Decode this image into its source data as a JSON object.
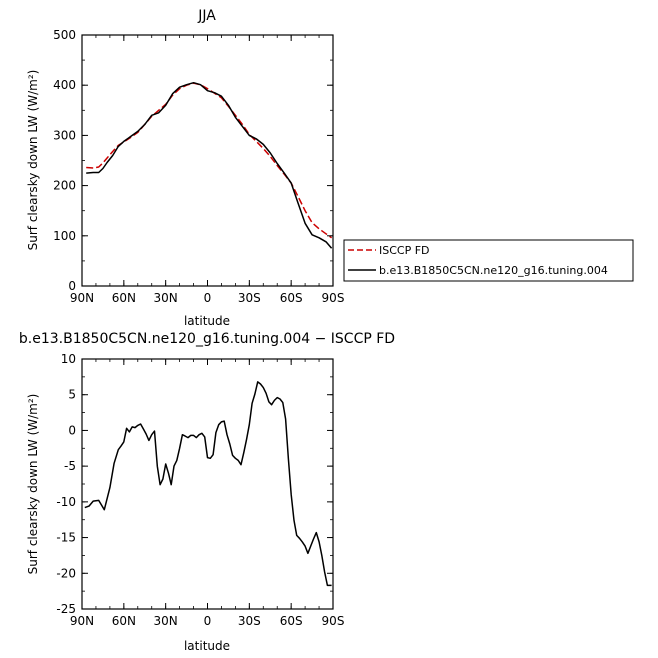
{
  "chart_data": [
    {
      "type": "line",
      "title": "JJA",
      "xlabel": "latitude",
      "ylabel": "Surf clearsky down LW (W/m²)",
      "ylim": [
        0,
        500
      ],
      "yticks": [
        0,
        100,
        200,
        300,
        400,
        500
      ],
      "xlim": [
        90,
        -90
      ],
      "xticks": [
        90,
        60,
        30,
        0,
        -30,
        -60,
        -90
      ],
      "xtick_labels": [
        "90N",
        "60N",
        "30N",
        "0",
        "30S",
        "60S",
        "90S"
      ],
      "grid": false,
      "legend_position": "bottom-right, outside",
      "series": [
        {
          "name": "ISCCP FD",
          "color": "#cc0000",
          "dash": "dashed",
          "x": [
            87,
            82,
            78,
            75,
            72,
            68,
            64,
            60,
            55,
            50,
            45,
            40,
            35,
            30,
            25,
            20,
            15,
            10,
            5,
            0,
            -5,
            -10,
            -15,
            -20,
            -25,
            -30,
            -35,
            -40,
            -45,
            -50,
            -55,
            -60,
            -65,
            -70,
            -75,
            -80,
            -85,
            -89
          ],
          "y": [
            236,
            235,
            237,
            245,
            255,
            268,
            280,
            287,
            296,
            306,
            322,
            338,
            350,
            362,
            380,
            393,
            400,
            404,
            401,
            393,
            384,
            375,
            358,
            340,
            322,
            302,
            288,
            274,
            258,
            240,
            223,
            205,
            178,
            150,
            126,
            114,
            104,
            96
          ]
        },
        {
          "name": "b.e13.B1850C5CN.ne120_g16.tuning.004",
          "color": "#000000",
          "dash": "solid",
          "x": [
            87,
            82,
            78,
            75,
            72,
            68,
            64,
            60,
            55,
            50,
            45,
            40,
            35,
            30,
            25,
            20,
            15,
            10,
            5,
            0,
            -5,
            -10,
            -15,
            -20,
            -25,
            -30,
            -35,
            -40,
            -45,
            -50,
            -55,
            -60,
            -65,
            -70,
            -75,
            -80,
            -85,
            -89
          ],
          "y": [
            225,
            226,
            226,
            234,
            246,
            260,
            278,
            288,
            298,
            308,
            322,
            340,
            345,
            360,
            383,
            396,
            401,
            405,
            401,
            389,
            385,
            378,
            360,
            336,
            318,
            300,
            293,
            282,
            265,
            244,
            225,
            205,
            165,
            125,
            102,
            96,
            88,
            75
          ]
        }
      ]
    },
    {
      "type": "line",
      "title": "b.e13.B1850C5CN.ne120_g16.tuning.004 − ISCCP FD",
      "xlabel": "latitude",
      "ylabel": "Surf clearsky down LW (W/m²)",
      "ylim": [
        -25,
        10
      ],
      "yticks": [
        -25,
        -20,
        -15,
        -10,
        -5,
        0,
        5,
        10
      ],
      "xlim": [
        90,
        -90
      ],
      "xticks": [
        90,
        60,
        30,
        0,
        -30,
        -60,
        -90
      ],
      "xtick_labels": [
        "90N",
        "60N",
        "30N",
        "0",
        "30S",
        "60S",
        "90S"
      ],
      "grid": false,
      "series": [
        {
          "name": "",
          "color": "#000000",
          "dash": "solid",
          "x": [
            88,
            85,
            82,
            78,
            74,
            70,
            67,
            64,
            62,
            60,
            58,
            56,
            54,
            52,
            50,
            48,
            46,
            44,
            42,
            40,
            38,
            36,
            34,
            32,
            30,
            28,
            26,
            24,
            22,
            20,
            18,
            16,
            14,
            12,
            10,
            8,
            6,
            4,
            2,
            0,
            -2,
            -4,
            -6,
            -8,
            -10,
            -12,
            -14,
            -16,
            -18,
            -20,
            -22,
            -24,
            -26,
            -28,
            -30,
            -32,
            -34,
            -36,
            -38,
            -40,
            -42,
            -44,
            -46,
            -48,
            -50,
            -52,
            -54,
            -56,
            -58,
            -60,
            -62,
            -64,
            -66,
            -68,
            -70,
            -72,
            -74,
            -76,
            -78,
            -80,
            -82,
            -84,
            -86,
            -88,
            -89
          ],
          "y": [
            -10.8,
            -10.6,
            -9.9,
            -9.8,
            -11.1,
            -8.0,
            -4.6,
            -2.7,
            -2.2,
            -1.6,
            0.3,
            -0.2,
            0.5,
            0.4,
            0.7,
            0.9,
            0.2,
            -0.5,
            -1.4,
            -0.6,
            -0.1,
            -5.0,
            -7.6,
            -6.8,
            -4.7,
            -6.0,
            -7.6,
            -5.0,
            -4.2,
            -2.5,
            -0.6,
            -0.8,
            -1.0,
            -0.7,
            -0.7,
            -1.0,
            -0.6,
            -0.4,
            -0.9,
            -3.8,
            -3.9,
            -3.4,
            -0.3,
            0.8,
            1.2,
            1.3,
            -0.6,
            -1.9,
            -3.5,
            -3.9,
            -4.2,
            -4.8,
            -3.1,
            -1.3,
            0.8,
            3.8,
            5.1,
            6.8,
            6.5,
            6.0,
            5.2,
            4.0,
            3.6,
            4.2,
            4.6,
            4.4,
            3.9,
            1.6,
            -4.0,
            -9.0,
            -12.6,
            -14.7,
            -15.1,
            -15.6,
            -16.2,
            -17.2,
            -16.2,
            -15.2,
            -14.3,
            -15.6,
            -17.5,
            -19.8,
            -21.7,
            -21.7,
            -21.7
          ]
        }
      ]
    }
  ]
}
